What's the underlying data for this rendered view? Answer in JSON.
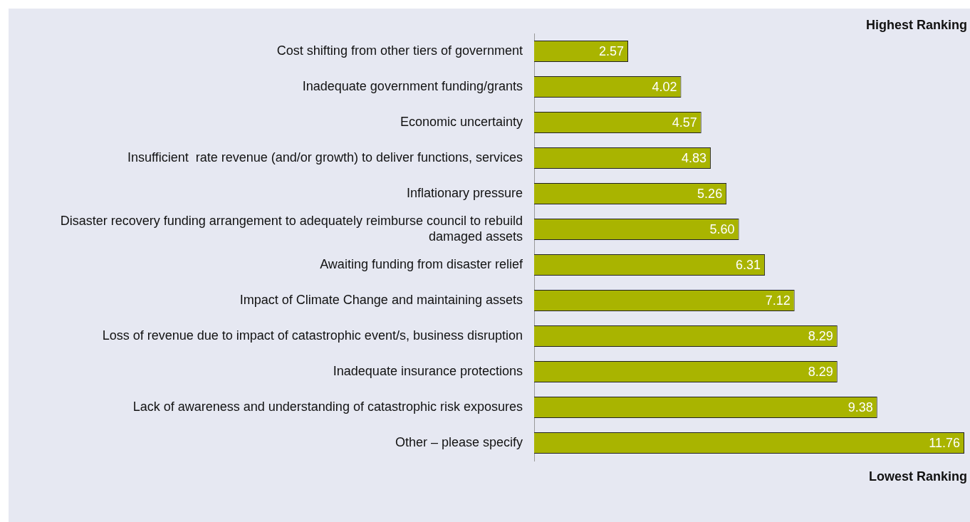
{
  "chart_data": {
    "type": "bar",
    "orientation": "horizontal",
    "categories": [
      "Cost shifting from other tiers of government",
      "Inadequate government funding/grants",
      "Economic uncertainty",
      "Insufficient  rate revenue (and/or growth) to deliver functions, services",
      "Inflationary pressure",
      "Disaster recovery funding arrangement to adequately reimburse council to rebuild damaged assets",
      "Awaiting funding from disaster relief",
      "Impact of Climate Change and maintaining assets",
      "Loss of revenue due to impact of catastrophic event/s, business disruption",
      "Inadequate insurance protections",
      "Lack of awareness and understanding of catastrophic risk exposures",
      "Other – please specify"
    ],
    "values": [
      2.57,
      4.02,
      4.57,
      4.83,
      5.26,
      5.6,
      6.31,
      7.12,
      8.29,
      8.29,
      9.38,
      11.76
    ],
    "value_labels": [
      "2.57",
      "4.02",
      "4.57",
      "4.83",
      "5.26",
      "5.60",
      "6.31",
      "7.12",
      "8.29",
      "8.29",
      "9.38",
      "11.76"
    ],
    "color": "#a9b400",
    "annotations": [
      "Highest Ranking",
      "Lowest Ranking"
    ],
    "tick_labels": "y",
    "legend": false
  }
}
